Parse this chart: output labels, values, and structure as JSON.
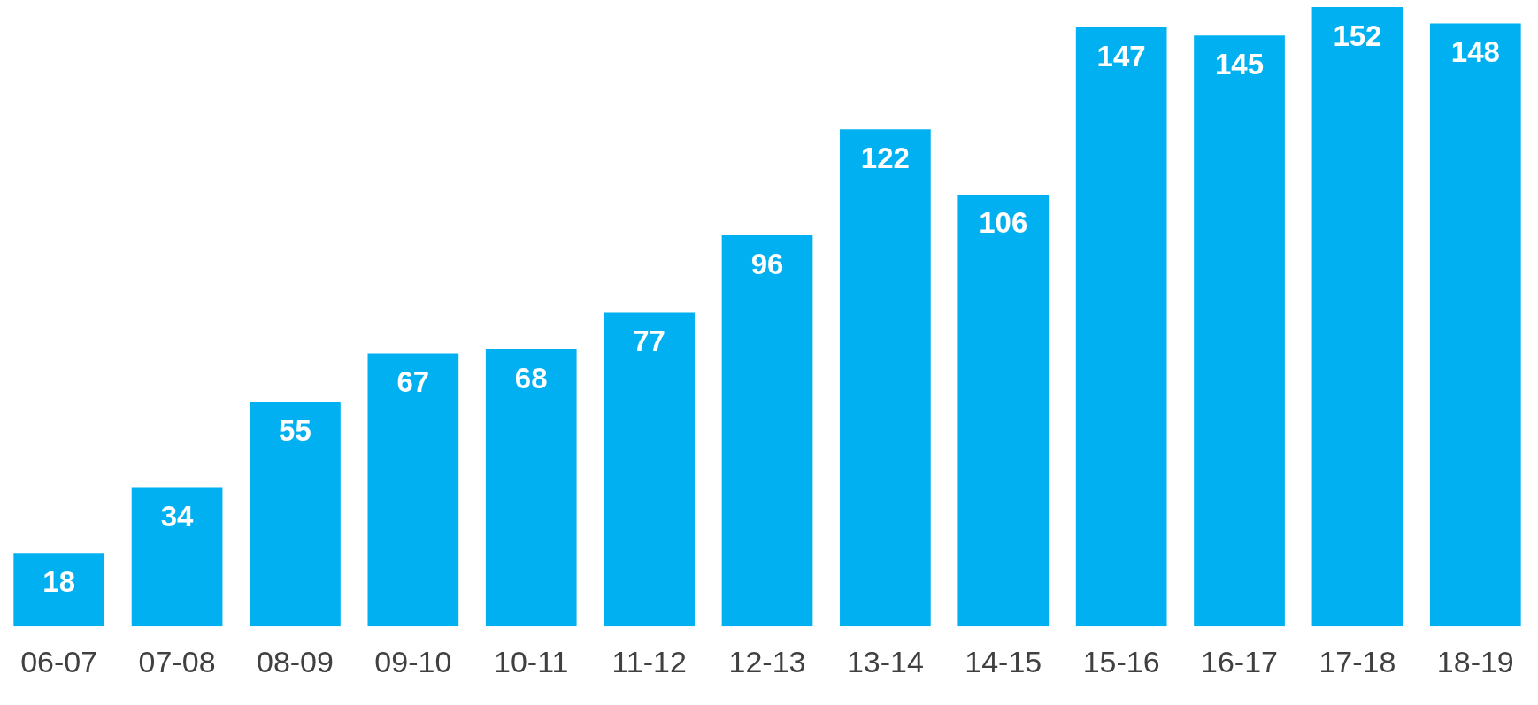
{
  "chart_data": {
    "type": "bar",
    "categories": [
      "06-07",
      "07-08",
      "08-09",
      "09-10",
      "10-11",
      "11-12",
      "12-13",
      "13-14",
      "14-15",
      "15-16",
      "16-17",
      "17-18",
      "18-19"
    ],
    "values": [
      18,
      34,
      55,
      67,
      68,
      77,
      96,
      122,
      106,
      147,
      145,
      152,
      148
    ],
    "color": "#00b0f0",
    "data_labels": true,
    "grid": false,
    "legend": false,
    "tick_labels": "x"
  }
}
